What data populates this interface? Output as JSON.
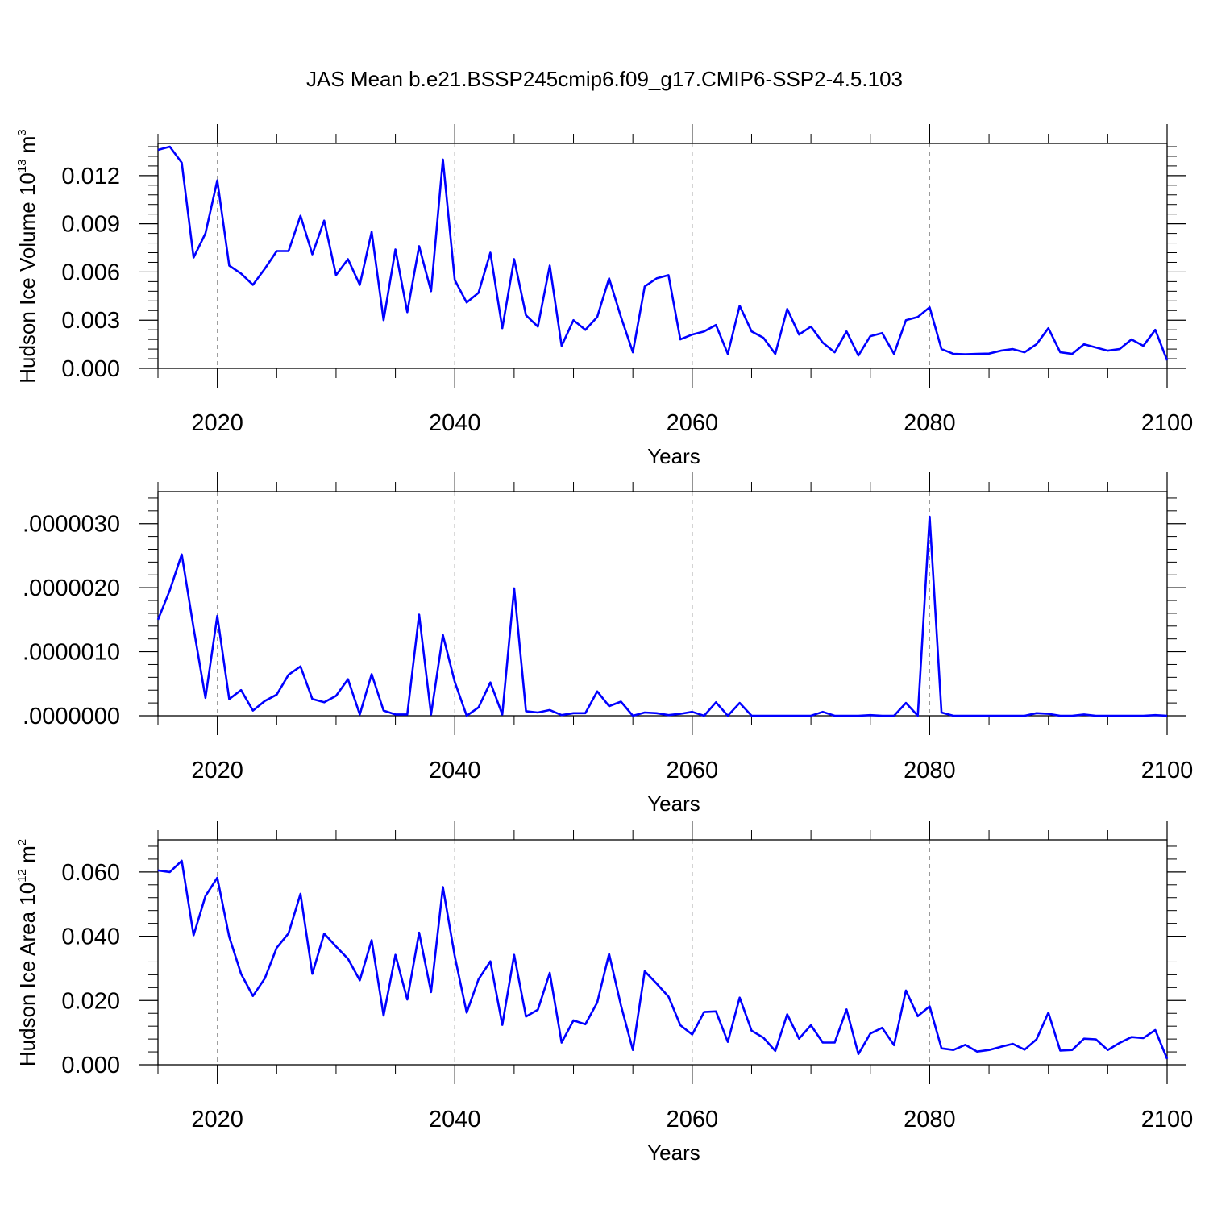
{
  "title": "JAS Mean b.e21.BSSP245cmip6.f09_g17.CMIP6-SSP2-4.5.103",
  "colors": {
    "line": "#0000ff",
    "axis": "#000000",
    "grid": "#999999"
  },
  "chart_data": [
    {
      "type": "line",
      "xlabel": "Years",
      "ylabel_parts": {
        "main": "Hudson Ice Volume 10",
        "exp": "13",
        "unit": " m",
        "unit_exp": "3"
      },
      "xlim": [
        2015,
        2100
      ],
      "ylim": [
        0,
        0.014
      ],
      "xticks": [
        2020,
        2040,
        2060,
        2080,
        2100
      ],
      "xtick_labels": [
        "2020",
        "2040",
        "2060",
        "2080",
        "2100"
      ],
      "yticks": [
        0,
        0.003,
        0.006,
        0.009,
        0.012
      ],
      "ytick_labels": [
        "0.000",
        "0.003",
        "0.006",
        "0.009",
        "0.012"
      ],
      "grid": "vertical dashed at major x ticks",
      "x_start": 2015,
      "values": [
        0.0136,
        0.0138,
        0.0128,
        0.0069,
        0.0084,
        0.0117,
        0.0064,
        0.0059,
        0.0052,
        0.0062,
        0.0073,
        0.0073,
        0.0095,
        0.0071,
        0.0092,
        0.0058,
        0.0068,
        0.0052,
        0.0085,
        0.003,
        0.0074,
        0.0035,
        0.0076,
        0.0048,
        0.013,
        0.0055,
        0.0041,
        0.0047,
        0.0072,
        0.0025,
        0.0068,
        0.0033,
        0.0026,
        0.0064,
        0.0014,
        0.003,
        0.0024,
        0.0032,
        0.0056,
        0.0032,
        0.001,
        0.0051,
        0.0056,
        0.0058,
        0.0018,
        0.0021,
        0.0023,
        0.0027,
        0.0009,
        0.0039,
        0.0023,
        0.0019,
        0.0009,
        0.0037,
        0.0021,
        0.0026,
        0.0016,
        0.001,
        0.0023,
        0.0008,
        0.002,
        0.0022,
        0.0009,
        0.003,
        0.0032,
        0.0038,
        0.0012,
        0.0009,
        0.00088,
        0.0009,
        0.00092,
        0.0011,
        0.0012,
        0.001,
        0.0015,
        0.0025,
        0.001,
        0.0009,
        0.0015,
        0.0013,
        0.0011,
        0.0012,
        0.0018,
        0.0014,
        0.0024,
        0.0005
      ]
    },
    {
      "type": "line",
      "xlabel": "Years",
      "xlim": [
        2015,
        2100
      ],
      "ylim": [
        0,
        3.5e-06
      ],
      "xticks": [
        2020,
        2040,
        2060,
        2080,
        2100
      ],
      "xtick_labels": [
        "2020",
        "2040",
        "2060",
        "2080",
        "2100"
      ],
      "yticks": [
        0,
        1e-06,
        2e-06,
        3e-06
      ],
      "ytick_labels": [
        ".0000000",
        ".0000010",
        ".0000020",
        ".0000030"
      ],
      "grid": "vertical dashed at major x ticks",
      "x_start": 2015,
      "values": [
        1.5e-06,
        1.96e-06,
        2.52e-06,
        1.37e-06,
        2.8e-07,
        1.56e-06,
        2.6e-07,
        4e-07,
        8e-08,
        2.3e-07,
        3.3e-07,
        6.4e-07,
        7.7e-07,
        2.6e-07,
        2.1e-07,
        3.1e-07,
        5.7e-07,
        2e-08,
        6.5e-07,
        8e-08,
        2e-08,
        2e-08,
        1.58e-06,
        2e-08,
        1.26e-06,
        5.3e-07,
        0.0,
        1.3e-07,
        5.2e-07,
        2e-08,
        1.99e-06,
        7e-08,
        5e-08,
        9e-08,
        1e-08,
        4e-08,
        4e-08,
        3.8e-07,
        1.5e-07,
        2.2e-07,
        0.0,
        5e-08,
        4e-08,
        1e-08,
        3e-08,
        6e-08,
        0.0,
        2.1e-07,
        0.0,
        2e-07,
        0.0,
        0.0,
        0.0,
        0.0,
        0.0,
        0.0,
        6e-08,
        0.0,
        0.0,
        0.0,
        1e-08,
        0.0,
        0.0,
        2e-07,
        0.0,
        3.11e-06,
        5e-08,
        0.0,
        0.0,
        0.0,
        0.0,
        0.0,
        0.0,
        0.0,
        4e-08,
        3e-08,
        0.0,
        0.0,
        2e-08,
        0.0,
        0.0,
        0.0,
        0.0,
        0.0,
        1e-08,
        0.0
      ]
    },
    {
      "type": "line",
      "xlabel": "Years",
      "ylabel_parts": {
        "main": "Hudson Ice Area 10",
        "exp": "12",
        "unit": " m",
        "unit_exp": "2"
      },
      "xlim": [
        2015,
        2100
      ],
      "ylim": [
        0,
        0.07
      ],
      "xticks": [
        2020,
        2040,
        2060,
        2080,
        2100
      ],
      "xtick_labels": [
        "2020",
        "2040",
        "2060",
        "2080",
        "2100"
      ],
      "yticks": [
        0,
        0.02,
        0.04,
        0.06
      ],
      "ytick_labels": [
        "0.000",
        "0.020",
        "0.040",
        "0.060"
      ],
      "grid": "vertical dashed at major x ticks",
      "x_start": 2015,
      "values": [
        0.0605,
        0.06,
        0.0635,
        0.0403,
        0.0525,
        0.0582,
        0.0398,
        0.0283,
        0.0214,
        0.0269,
        0.0364,
        0.0409,
        0.0532,
        0.0283,
        0.0408,
        0.0368,
        0.033,
        0.0263,
        0.0388,
        0.0153,
        0.0342,
        0.0203,
        0.0411,
        0.0226,
        0.0553,
        0.0338,
        0.0162,
        0.0266,
        0.0322,
        0.0124,
        0.0342,
        0.015,
        0.0171,
        0.0286,
        0.0069,
        0.0138,
        0.0126,
        0.0194,
        0.0345,
        0.0185,
        0.0046,
        0.0291,
        0.0253,
        0.0212,
        0.0123,
        0.0094,
        0.0164,
        0.0166,
        0.0071,
        0.0209,
        0.0106,
        0.0084,
        0.0043,
        0.0157,
        0.0081,
        0.0123,
        0.0069,
        0.0069,
        0.0172,
        0.0033,
        0.0097,
        0.0115,
        0.0061,
        0.0231,
        0.0151,
        0.0182,
        0.0051,
        0.0046,
        0.0062,
        0.0041,
        0.0046,
        0.0056,
        0.0065,
        0.0047,
        0.0079,
        0.0162,
        0.0044,
        0.0046,
        0.0081,
        0.0079,
        0.0046,
        0.0068,
        0.0086,
        0.0083,
        0.0108,
        0.0018
      ]
    }
  ]
}
